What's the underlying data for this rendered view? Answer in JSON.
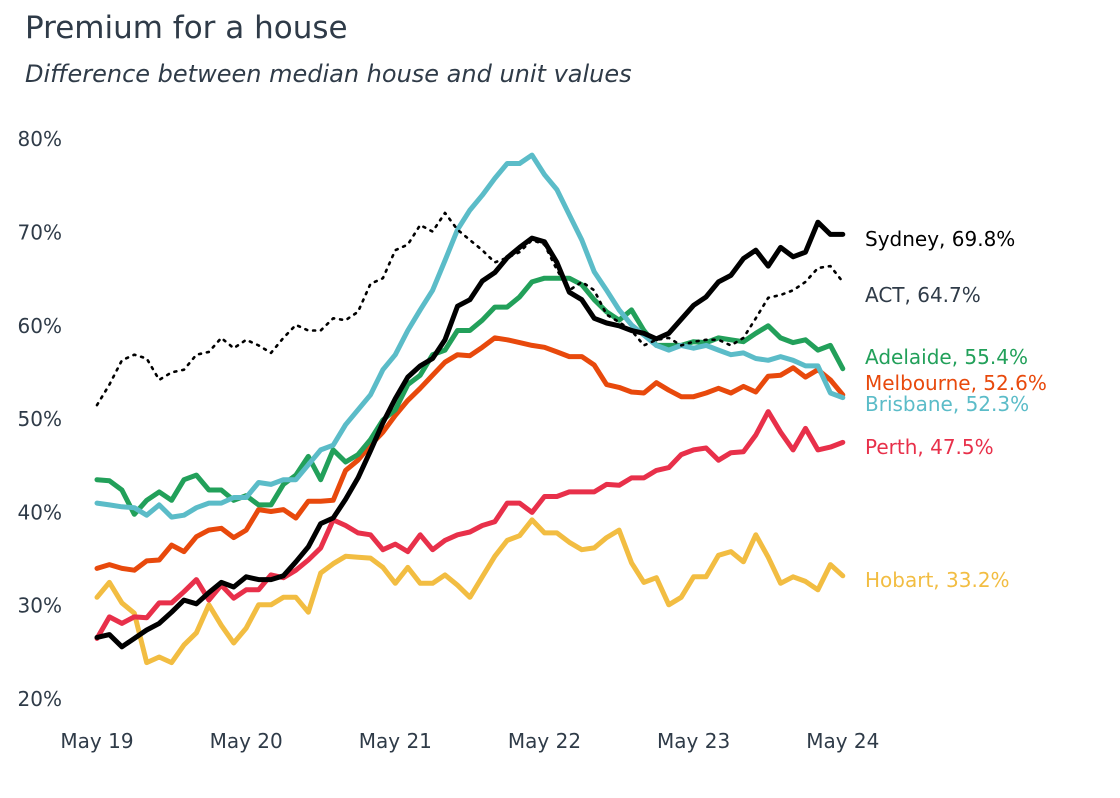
{
  "chart_data": {
    "type": "line",
    "title": "Premium for a house",
    "subtitle": "Difference between median house and unit values",
    "xlabel": "",
    "ylabel": "",
    "x_start": "May 19",
    "x_end": "May 24",
    "x_frequency": "monthly",
    "x_ticks": [
      "May 19",
      "May 20",
      "May 21",
      "May 22",
      "May 23",
      "May 24"
    ],
    "y_ticks": [
      "20%",
      "30%",
      "40%",
      "50%",
      "60%",
      "70%",
      "80%"
    ],
    "ylim": [
      20,
      80
    ],
    "grid": false,
    "legend": "direct labels at line ends (right)",
    "series": [
      {
        "name": "Sydney",
        "end_label": "Sydney, 69.8%",
        "color": "#000000",
        "style": "solid",
        "values": [
          26.6,
          26.9,
          25.6,
          26.5,
          27.4,
          28.1,
          29.3,
          30.6,
          30.2,
          31.4,
          32.5,
          32.0,
          33.1,
          32.8,
          32.8,
          33.2,
          34.7,
          36.3,
          38.8,
          39.4,
          41.4,
          43.7,
          46.6,
          49.6,
          52.2,
          54.5,
          55.7,
          56.5,
          58.5,
          62.1,
          62.8,
          64.8,
          65.7,
          67.3,
          68.4,
          69.4,
          69.0,
          66.8,
          63.6,
          62.8,
          60.8,
          60.3,
          60.0,
          59.5,
          59.2,
          58.6,
          59.2,
          60.7,
          62.2,
          63.1,
          64.7,
          65.4,
          67.2,
          68.1,
          66.4,
          68.4,
          67.4,
          67.9,
          71.1,
          69.8,
          69.8
        ]
      },
      {
        "name": "ACT",
        "end_label": "ACT, 64.7%",
        "color": "#000000",
        "style": "dotted",
        "values": [
          51.5,
          53.7,
          56.3,
          56.9,
          56.5,
          54.2,
          55.0,
          55.3,
          56.9,
          57.2,
          58.7,
          57.6,
          58.5,
          57.9,
          57.1,
          58.7,
          60.1,
          59.5,
          59.5,
          60.8,
          60.6,
          61.5,
          64.5,
          65.1,
          68.1,
          68.7,
          70.8,
          70.1,
          72.1,
          70.3,
          69.2,
          68.1,
          66.8,
          67.3,
          67.9,
          69.2,
          68.7,
          66.0,
          63.8,
          64.7,
          63.8,
          61.2,
          60.4,
          59.5,
          57.9,
          58.5,
          58.7,
          57.9,
          58.3,
          58.5,
          58.5,
          57.9,
          58.7,
          60.8,
          63.0,
          63.3,
          63.8,
          64.7,
          66.2,
          66.4,
          64.7
        ]
      },
      {
        "name": "Adelaide",
        "end_label": "Adelaide, 55.4%",
        "color": "#22a05a",
        "style": "solid",
        "values": [
          43.5,
          43.4,
          42.4,
          39.8,
          41.3,
          42.2,
          41.3,
          43.5,
          44.0,
          42.4,
          42.4,
          41.3,
          41.8,
          40.8,
          40.8,
          43.0,
          44.0,
          46.0,
          43.5,
          46.7,
          45.4,
          46.2,
          47.8,
          49.9,
          51.0,
          53.7,
          54.7,
          56.9,
          57.4,
          59.5,
          59.5,
          60.6,
          62.0,
          62.0,
          63.1,
          64.7,
          65.1,
          65.1,
          65.1,
          64.4,
          62.8,
          61.5,
          60.6,
          61.7,
          59.5,
          57.9,
          57.9,
          57.9,
          58.3,
          58.2,
          58.7,
          58.5,
          58.3,
          59.2,
          60.0,
          58.7,
          58.2,
          58.5,
          57.4,
          57.9,
          55.4
        ]
      },
      {
        "name": "Melbourne",
        "end_label": "Melbourne, 52.6%",
        "color": "#e8490c",
        "style": "solid",
        "values": [
          34.0,
          34.4,
          34.0,
          33.8,
          34.8,
          34.9,
          36.5,
          35.8,
          37.4,
          38.1,
          38.3,
          37.3,
          38.1,
          40.3,
          40.1,
          40.3,
          39.4,
          41.2,
          41.2,
          41.3,
          44.5,
          45.6,
          47.2,
          48.6,
          50.4,
          52.0,
          53.3,
          54.7,
          56.1,
          56.9,
          56.8,
          57.7,
          58.7,
          58.5,
          58.2,
          57.9,
          57.7,
          57.2,
          56.7,
          56.7,
          55.8,
          53.7,
          53.4,
          52.9,
          52.8,
          53.9,
          53.1,
          52.4,
          52.4,
          52.8,
          53.3,
          52.8,
          53.5,
          52.9,
          54.6,
          54.7,
          55.5,
          54.5,
          55.3,
          54.2,
          52.6
        ]
      },
      {
        "name": "Brisbane",
        "end_label": "Brisbane, 52.3%",
        "color": "#5bbcc8",
        "style": "solid",
        "values": [
          41.0,
          40.8,
          40.6,
          40.5,
          39.7,
          40.8,
          39.5,
          39.7,
          40.5,
          41.0,
          41.0,
          41.6,
          41.6,
          43.2,
          43.0,
          43.5,
          43.5,
          45.1,
          46.7,
          47.2,
          49.4,
          51.0,
          52.6,
          55.3,
          56.9,
          59.5,
          61.7,
          63.8,
          67.0,
          70.3,
          72.4,
          74.0,
          75.8,
          77.4,
          77.4,
          78.3,
          76.2,
          74.6,
          71.9,
          69.2,
          65.8,
          63.8,
          61.7,
          60.1,
          59.0,
          57.9,
          57.4,
          57.9,
          57.6,
          57.9,
          57.4,
          56.9,
          57.1,
          56.5,
          56.3,
          56.7,
          56.3,
          55.7,
          55.7,
          52.8,
          52.3
        ]
      },
      {
        "name": "Perth",
        "end_label": "Perth, 47.5%",
        "color": "#e8304a",
        "style": "solid",
        "values": [
          26.5,
          28.8,
          28.1,
          28.8,
          28.7,
          30.3,
          30.3,
          31.5,
          32.8,
          30.6,
          32.2,
          30.8,
          31.7,
          31.7,
          33.3,
          33.0,
          33.8,
          34.9,
          36.2,
          39.2,
          38.6,
          37.8,
          37.6,
          36.0,
          36.6,
          35.8,
          37.6,
          36.0,
          37.0,
          37.6,
          37.9,
          38.6,
          39.0,
          41.0,
          41.0,
          40.0,
          41.7,
          41.7,
          42.2,
          42.2,
          42.2,
          43.0,
          42.9,
          43.7,
          43.7,
          44.5,
          44.8,
          46.2,
          46.7,
          46.9,
          45.6,
          46.4,
          46.5,
          48.3,
          50.8,
          48.6,
          46.7,
          49.0,
          46.7,
          47.0,
          47.5
        ]
      },
      {
        "name": "Hobart",
        "end_label": "Hobart, 33.2%",
        "color": "#f2bd42",
        "style": "solid",
        "values": [
          30.9,
          32.5,
          30.3,
          29.2,
          23.9,
          24.5,
          23.9,
          25.8,
          27.1,
          30.1,
          27.9,
          26.0,
          27.6,
          30.1,
          30.1,
          30.9,
          30.9,
          29.3,
          33.5,
          34.5,
          35.3,
          35.2,
          35.1,
          34.1,
          32.4,
          34.1,
          32.4,
          32.4,
          33.3,
          32.2,
          30.9,
          33.1,
          35.3,
          37.0,
          37.5,
          39.2,
          37.8,
          37.8,
          36.8,
          36.0,
          36.2,
          37.3,
          38.1,
          34.6,
          32.5,
          33.0,
          30.1,
          30.9,
          33.1,
          33.1,
          35.4,
          35.8,
          34.7,
          37.6,
          35.2,
          32.4,
          33.1,
          32.6,
          31.7,
          34.4,
          33.2
        ]
      }
    ]
  }
}
